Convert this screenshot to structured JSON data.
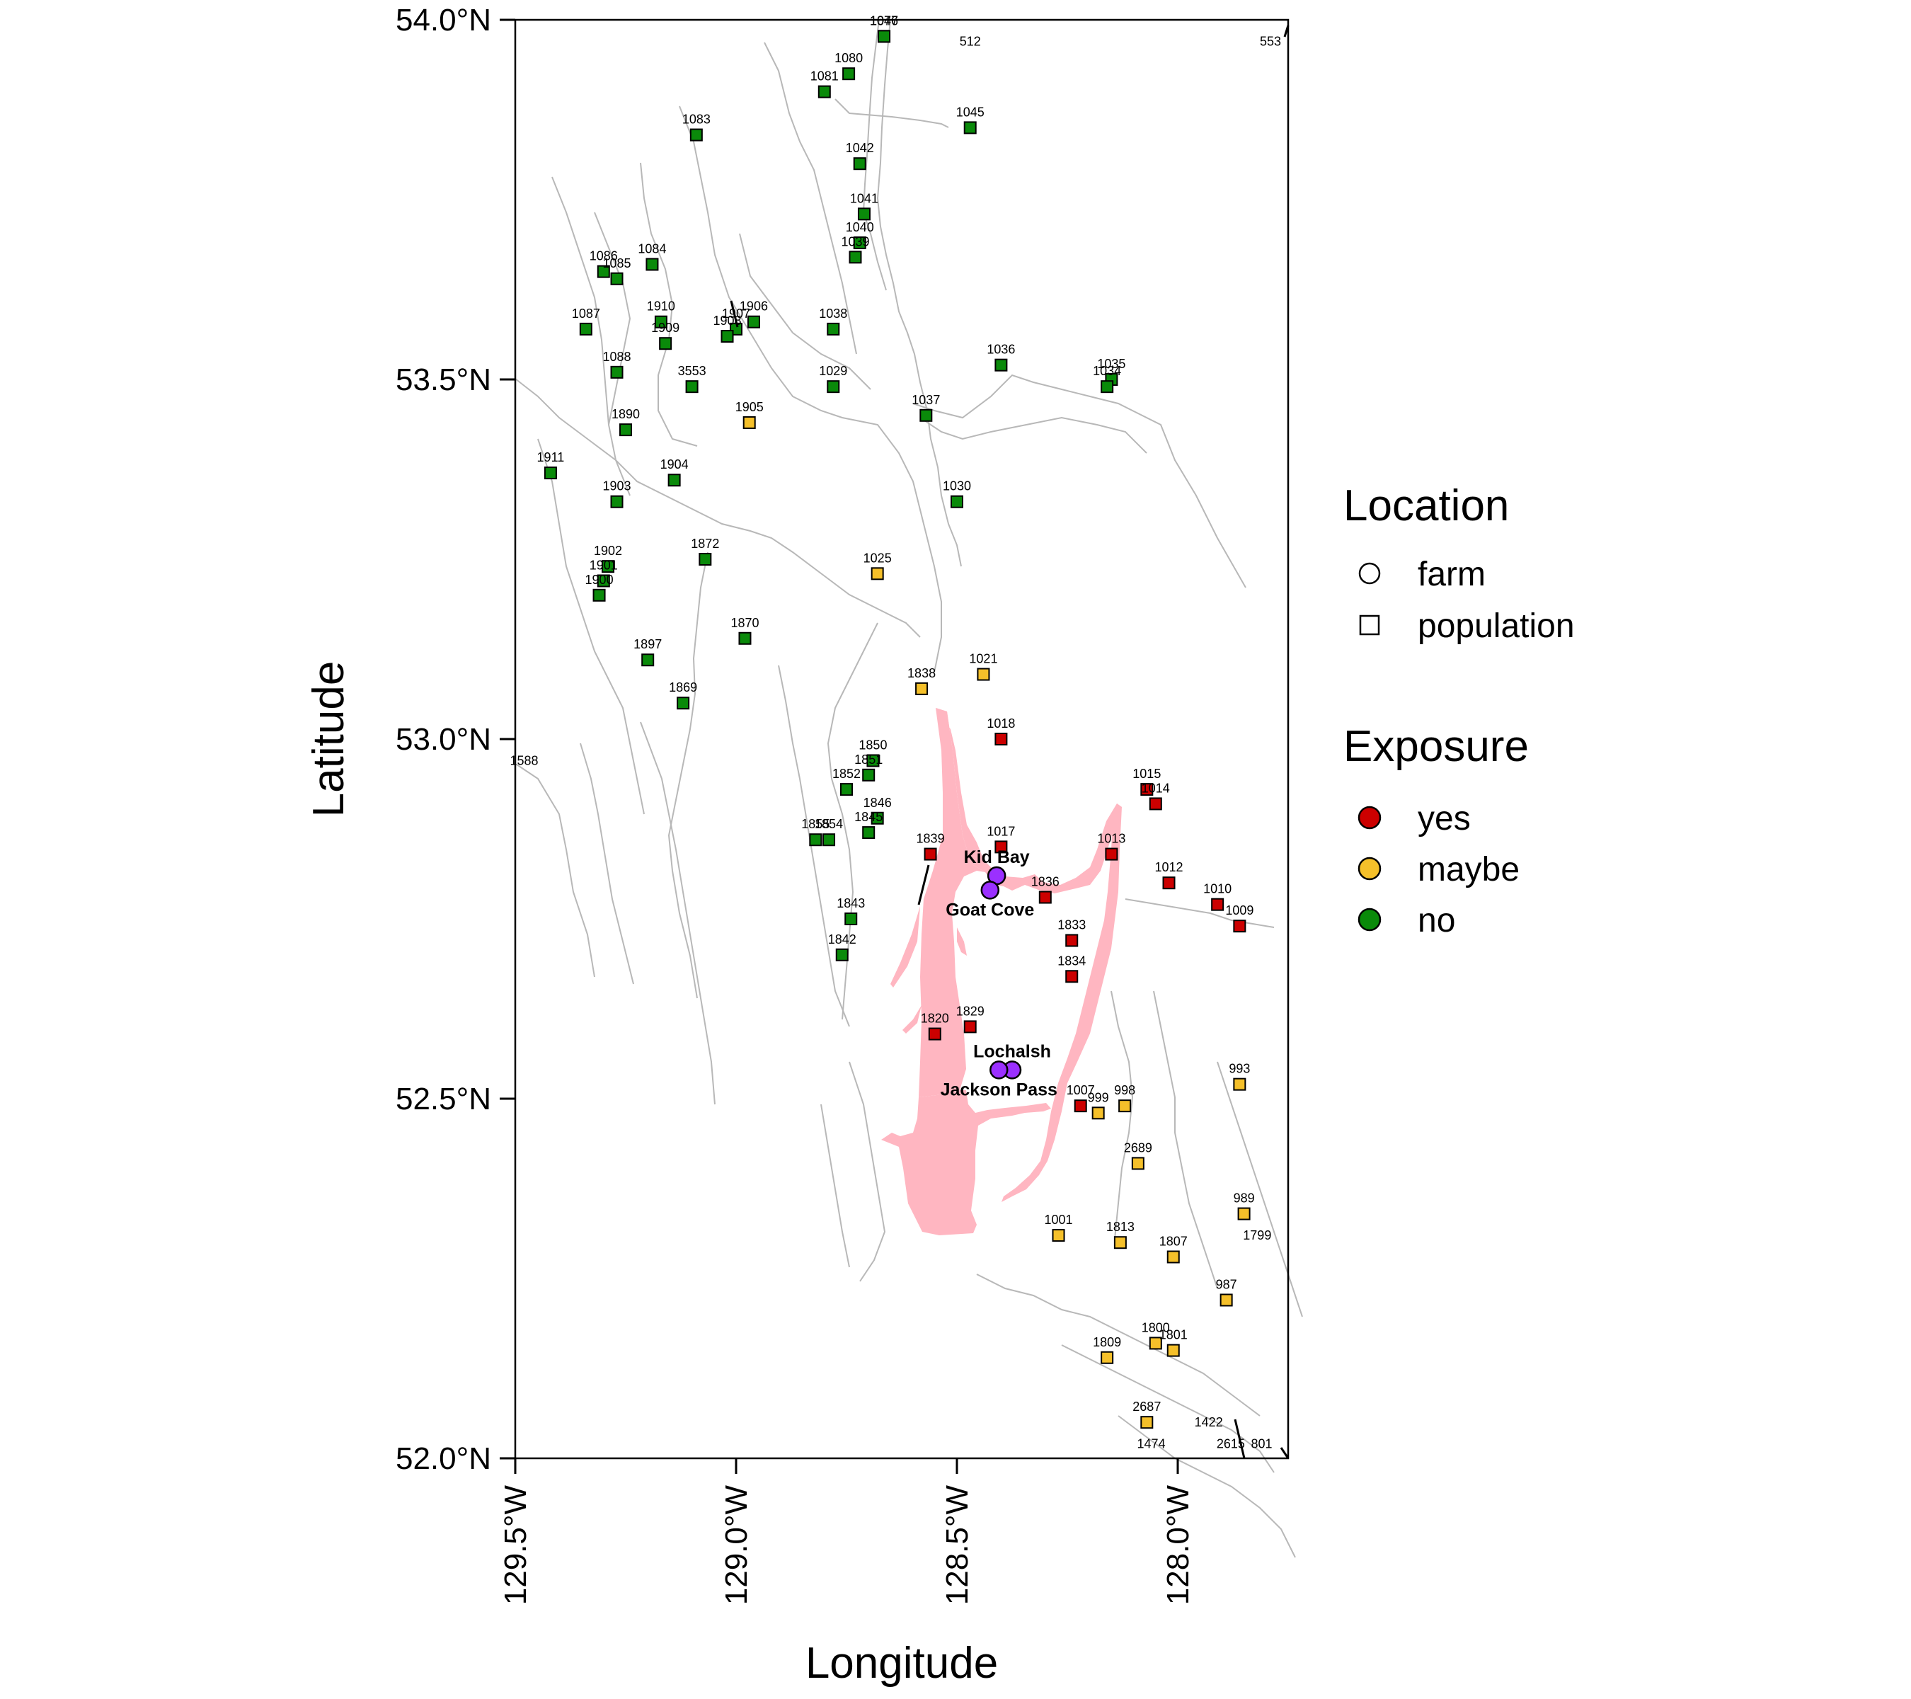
{
  "axes": {
    "xlabel": "Longitude",
    "ylabel": "Latitude",
    "xlim": [
      -129.5,
      -127.75
    ],
    "ylim": [
      52.0,
      54.0
    ],
    "xticks": [
      {
        "value": -129.5,
        "label": "129.5°W"
      },
      {
        "value": -129.0,
        "label": "129.0°W"
      },
      {
        "value": -128.5,
        "label": "128.5°W"
      },
      {
        "value": -128.0,
        "label": "128.0°W"
      }
    ],
    "yticks": [
      {
        "value": 52.0,
        "label": "52.0°N"
      },
      {
        "value": 52.5,
        "label": "52.5°N"
      },
      {
        "value": 53.0,
        "label": "53.0°N"
      },
      {
        "value": 53.5,
        "label": "53.5°N"
      },
      {
        "value": 54.0,
        "label": "54.0°N"
      }
    ]
  },
  "legend": {
    "location": {
      "title": "Location",
      "items": [
        {
          "label": "farm",
          "shape": "circle"
        },
        {
          "label": "population",
          "shape": "square"
        }
      ]
    },
    "exposure": {
      "title": "Exposure",
      "items": [
        {
          "label": "yes",
          "color": "#cc0000"
        },
        {
          "label": "maybe",
          "color": "#f5c02a"
        },
        {
          "label": "no",
          "color": "#0a8a0a"
        }
      ]
    }
  },
  "colors": {
    "yes": "#cc0000",
    "maybe": "#f5c02a",
    "no": "#0a8a0a",
    "farm": "#9b30ff",
    "exposure_zone": "#ffb6c1",
    "coastline": "#b8b8b8"
  },
  "farms": [
    {
      "name": "Kid Bay",
      "lon": -128.41,
      "lat": 52.81
    },
    {
      "name": "Goat Cove",
      "lon": -128.425,
      "lat": 52.79
    },
    {
      "name": "Lochalsh",
      "lon": -128.375,
      "lat": 52.54
    },
    {
      "name": "Jackson Pass",
      "lon": -128.405,
      "lat": 52.54
    }
  ],
  "chart_data": {
    "type": "scatter",
    "xlabel": "Longitude",
    "ylabel": "Latitude",
    "xlim": [
      -129.5,
      -127.75
    ],
    "ylim": [
      52.0,
      54.0
    ],
    "farms": [
      {
        "name": "Kid Bay",
        "lon": -128.41,
        "lat": 52.81
      },
      {
        "name": "Goat Cove",
        "lon": -128.425,
        "lat": 52.79
      },
      {
        "name": "Lochalsh",
        "lon": -128.375,
        "lat": 52.54
      },
      {
        "name": "Jackson Pass",
        "lon": -128.405,
        "lat": 52.54
      }
    ],
    "populations": [
      {
        "id": "1077",
        "lon": -128.665,
        "lat": 53.977,
        "exposure": "no"
      },
      {
        "id": "1046",
        "lon": -128.665,
        "lat": 53.977,
        "exposure": "no"
      },
      {
        "id": "1080",
        "lon": -128.745,
        "lat": 53.925,
        "exposure": "no"
      },
      {
        "id": "1081",
        "lon": -128.8,
        "lat": 53.9,
        "exposure": "no"
      },
      {
        "id": "1083",
        "lon": -129.09,
        "lat": 53.84,
        "exposure": "no"
      },
      {
        "id": "1045",
        "lon": -128.47,
        "lat": 53.85,
        "exposure": "no"
      },
      {
        "id": "1042",
        "lon": -128.72,
        "lat": 53.8,
        "exposure": "no"
      },
      {
        "id": "1041",
        "lon": -128.71,
        "lat": 53.73,
        "exposure": "no"
      },
      {
        "id": "1040",
        "lon": -128.72,
        "lat": 53.69,
        "exposure": "no"
      },
      {
        "id": "1039",
        "lon": -128.73,
        "lat": 53.67,
        "exposure": "no"
      },
      {
        "id": "1084",
        "lon": -129.19,
        "lat": 53.66,
        "exposure": "no"
      },
      {
        "id": "1086",
        "lon": -129.3,
        "lat": 53.65,
        "exposure": "no"
      },
      {
        "id": "1085",
        "lon": -129.27,
        "lat": 53.64,
        "exposure": "no"
      },
      {
        "id": "1087",
        "lon": -129.34,
        "lat": 53.57,
        "exposure": "no"
      },
      {
        "id": "1910",
        "lon": -129.17,
        "lat": 53.58,
        "exposure": "no"
      },
      {
        "id": "1909",
        "lon": -129.16,
        "lat": 53.55,
        "exposure": "no"
      },
      {
        "id": "1907",
        "lon": -129.0,
        "lat": 53.57,
        "exposure": "no"
      },
      {
        "id": "1908",
        "lon": -129.02,
        "lat": 53.56,
        "exposure": "no"
      },
      {
        "id": "1906",
        "lon": -128.96,
        "lat": 53.58,
        "exposure": "no"
      },
      {
        "id": "1038",
        "lon": -128.78,
        "lat": 53.57,
        "exposure": "no"
      },
      {
        "id": "1088",
        "lon": -129.27,
        "lat": 53.51,
        "exposure": "no"
      },
      {
        "id": "3553",
        "lon": -129.1,
        "lat": 53.49,
        "exposure": "no"
      },
      {
        "id": "1029",
        "lon": -128.78,
        "lat": 53.49,
        "exposure": "no"
      },
      {
        "id": "1036",
        "lon": -128.4,
        "lat": 53.52,
        "exposure": "no"
      },
      {
        "id": "1035",
        "lon": -128.15,
        "lat": 53.5,
        "exposure": "no"
      },
      {
        "id": "1034",
        "lon": -128.16,
        "lat": 53.49,
        "exposure": "no"
      },
      {
        "id": "1037",
        "lon": -128.57,
        "lat": 53.45,
        "exposure": "no"
      },
      {
        "id": "1890",
        "lon": -129.25,
        "lat": 53.43,
        "exposure": "no"
      },
      {
        "id": "1905",
        "lon": -128.97,
        "lat": 53.44,
        "exposure": "maybe"
      },
      {
        "id": "1911",
        "lon": -129.42,
        "lat": 53.37,
        "exposure": "no"
      },
      {
        "id": "1904",
        "lon": -129.14,
        "lat": 53.36,
        "exposure": "no"
      },
      {
        "id": "1903",
        "lon": -129.27,
        "lat": 53.33,
        "exposure": "no"
      },
      {
        "id": "1030",
        "lon": -128.5,
        "lat": 53.33,
        "exposure": "no"
      },
      {
        "id": "1902",
        "lon": -129.29,
        "lat": 53.24,
        "exposure": "no"
      },
      {
        "id": "1901",
        "lon": -129.3,
        "lat": 53.22,
        "exposure": "no"
      },
      {
        "id": "1872",
        "lon": -129.07,
        "lat": 53.25,
        "exposure": "no"
      },
      {
        "id": "1025",
        "lon": -128.68,
        "lat": 53.23,
        "exposure": "maybe"
      },
      {
        "id": "1900",
        "lon": -129.31,
        "lat": 53.2,
        "exposure": "no"
      },
      {
        "id": "1870",
        "lon": -128.98,
        "lat": 53.14,
        "exposure": "no"
      },
      {
        "id": "1897",
        "lon": -129.2,
        "lat": 53.11,
        "exposure": "no"
      },
      {
        "id": "1869",
        "lon": -129.12,
        "lat": 53.05,
        "exposure": "no"
      },
      {
        "id": "1838",
        "lon": -128.58,
        "lat": 53.07,
        "exposure": "maybe"
      },
      {
        "id": "1021",
        "lon": -128.44,
        "lat": 53.09,
        "exposure": "maybe"
      },
      {
        "id": "1018",
        "lon": -128.4,
        "lat": 53.0,
        "exposure": "yes"
      },
      {
        "id": "1850",
        "lon": -128.69,
        "lat": 52.97,
        "exposure": "no"
      },
      {
        "id": "1851",
        "lon": -128.7,
        "lat": 52.95,
        "exposure": "no"
      },
      {
        "id": "1852",
        "lon": -128.75,
        "lat": 52.93,
        "exposure": "no"
      },
      {
        "id": "1846",
        "lon": -128.68,
        "lat": 52.89,
        "exposure": "no"
      },
      {
        "id": "1015",
        "lon": -128.07,
        "lat": 52.93,
        "exposure": "yes"
      },
      {
        "id": "1014",
        "lon": -128.05,
        "lat": 52.91,
        "exposure": "yes"
      },
      {
        "id": "1845",
        "lon": -128.7,
        "lat": 52.87,
        "exposure": "no"
      },
      {
        "id": "1855",
        "lon": -128.82,
        "lat": 52.86,
        "exposure": "no"
      },
      {
        "id": "1854",
        "lon": -128.79,
        "lat": 52.86,
        "exposure": "no"
      },
      {
        "id": "1839",
        "lon": -128.56,
        "lat": 52.84,
        "exposure": "yes"
      },
      {
        "id": "1017",
        "lon": -128.4,
        "lat": 52.85,
        "exposure": "yes"
      },
      {
        "id": "1013",
        "lon": -128.15,
        "lat": 52.84,
        "exposure": "yes"
      },
      {
        "id": "1012",
        "lon": -128.02,
        "lat": 52.8,
        "exposure": "yes"
      },
      {
        "id": "1010",
        "lon": -127.91,
        "lat": 52.77,
        "exposure": "yes"
      },
      {
        "id": "1009",
        "lon": -127.86,
        "lat": 52.74,
        "exposure": "yes"
      },
      {
        "id": "1836",
        "lon": -128.3,
        "lat": 52.78,
        "exposure": "yes"
      },
      {
        "id": "1843",
        "lon": -128.74,
        "lat": 52.75,
        "exposure": "no"
      },
      {
        "id": "1833",
        "lon": -128.24,
        "lat": 52.72,
        "exposure": "yes"
      },
      {
        "id": "1842",
        "lon": -128.76,
        "lat": 52.7,
        "exposure": "no"
      },
      {
        "id": "1834",
        "lon": -128.24,
        "lat": 52.67,
        "exposure": "yes"
      },
      {
        "id": "1829",
        "lon": -128.47,
        "lat": 52.6,
        "exposure": "yes"
      },
      {
        "id": "1820",
        "lon": -128.55,
        "lat": 52.59,
        "exposure": "yes"
      },
      {
        "id": "993",
        "lon": -127.86,
        "lat": 52.52,
        "exposure": "maybe"
      },
      {
        "id": "998",
        "lon": -128.12,
        "lat": 52.49,
        "exposure": "maybe"
      },
      {
        "id": "1007",
        "lon": -128.22,
        "lat": 52.49,
        "exposure": "yes"
      },
      {
        "id": "999",
        "lon": -128.18,
        "lat": 52.48,
        "exposure": "maybe"
      },
      {
        "id": "2689",
        "lon": -128.09,
        "lat": 52.41,
        "exposure": "maybe"
      },
      {
        "id": "989",
        "lon": -127.85,
        "lat": 52.34,
        "exposure": "maybe"
      },
      {
        "id": "1001",
        "lon": -128.27,
        "lat": 52.31,
        "exposure": "maybe"
      },
      {
        "id": "1813",
        "lon": -128.13,
        "lat": 52.3,
        "exposure": "maybe"
      },
      {
        "id": "1807",
        "lon": -128.01,
        "lat": 52.28,
        "exposure": "maybe"
      },
      {
        "id": "987",
        "lon": -127.89,
        "lat": 52.22,
        "exposure": "maybe"
      },
      {
        "id": "1800",
        "lon": -128.05,
        "lat": 52.16,
        "exposure": "maybe"
      },
      {
        "id": "1801",
        "lon": -128.01,
        "lat": 52.15,
        "exposure": "maybe"
      },
      {
        "id": "1809",
        "lon": -128.16,
        "lat": 52.14,
        "exposure": "maybe"
      },
      {
        "id": "2687",
        "lon": -128.07,
        "lat": 52.05,
        "exposure": "maybe"
      }
    ]
  },
  "edge_labels": [
    {
      "id": "512",
      "lon": -128.47,
      "lat": 53.97
    },
    {
      "id": "553",
      "lon": -127.79,
      "lat": 53.97
    },
    {
      "id": "1588",
      "lon": -129.48,
      "lat": 52.97
    },
    {
      "id": "1799",
      "lon": -127.82,
      "lat": 52.31
    },
    {
      "id": "1422",
      "lon": -127.93,
      "lat": 52.05
    },
    {
      "id": "1474",
      "lon": -128.06,
      "lat": 52.02
    },
    {
      "id": "2615",
      "lon": -127.88,
      "lat": 52.02
    },
    {
      "id": "801",
      "lon": -127.81,
      "lat": 52.02
    }
  ]
}
